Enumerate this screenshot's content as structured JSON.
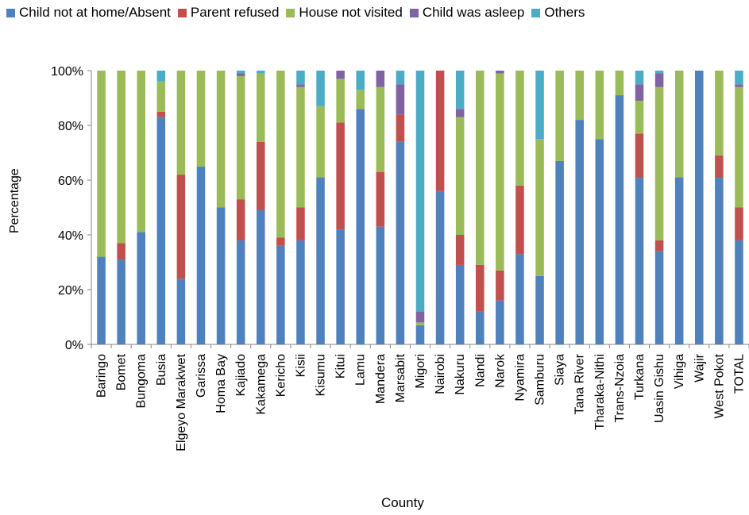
{
  "chart_data": {
    "type": "bar",
    "stacked": true,
    "xlabel": "County",
    "ylabel": "Percentage",
    "ylim": [
      0,
      100
    ],
    "yticks": [
      "0%",
      "20%",
      "40%",
      "60%",
      "80%",
      "100%"
    ],
    "legend_position": "top",
    "categories": [
      "Baringo",
      "Bomet",
      "Bungoma",
      "Busia",
      "Elgeyo Marakwet",
      "Garissa",
      "Homa Bay",
      "Kajiado",
      "Kakamega",
      "Kericho",
      "Kisii",
      "Kisumu",
      "Kitui",
      "Lamu",
      "Mandera",
      "Marsabit",
      "Migori",
      "Nairobi",
      "Nakuru",
      "Nandi",
      "Narok",
      "Nyamira",
      "Samburu",
      "Siaya",
      "Tana River",
      "Tharaka-Nithi",
      "Trans-Nzoia",
      "Turkana",
      "Uasin Gishu",
      "Vihiga",
      "Wajir",
      "West Pokot",
      "TOTAL"
    ],
    "series": [
      {
        "name": "Child not at home/Absent",
        "color": "#4F81BD",
        "values": [
          32,
          31,
          41,
          83,
          24,
          65,
          50,
          38,
          49,
          36,
          38,
          61,
          42,
          86,
          43,
          74,
          7,
          56,
          29,
          12,
          16,
          33,
          25,
          67,
          82,
          75,
          91,
          61,
          34,
          61,
          100,
          61,
          38
        ]
      },
      {
        "name": "Parent refused",
        "color": "#C0504D",
        "values": [
          0,
          6,
          0,
          2,
          38,
          0,
          0,
          15,
          25,
          3,
          12,
          0,
          39,
          0,
          20,
          10,
          0,
          44,
          11,
          17,
          11,
          25,
          0,
          0,
          0,
          0,
          0,
          16,
          4,
          0,
          0,
          8,
          12
        ]
      },
      {
        "name": "House not visited",
        "color": "#9BBB59",
        "values": [
          68,
          63,
          59,
          11,
          38,
          35,
          50,
          45,
          25,
          61,
          44,
          26,
          16,
          7,
          31,
          0,
          1,
          0,
          43,
          71,
          72,
          42,
          50,
          33,
          18,
          25,
          9,
          12,
          56,
          39,
          0,
          31,
          44
        ]
      },
      {
        "name": "Child was asleep",
        "color": "#8064A2",
        "values": [
          0,
          0,
          0,
          0,
          0,
          0,
          0,
          1,
          0,
          0,
          1,
          0,
          3,
          0,
          6,
          11,
          4,
          0,
          3,
          0,
          1,
          0,
          0,
          0,
          0,
          0,
          0,
          6,
          5,
          0,
          0,
          0,
          1
        ]
      },
      {
        "name": "Others",
        "color": "#4BACC6",
        "values": [
          0,
          0,
          0,
          4,
          0,
          0,
          0,
          1,
          1,
          0,
          5,
          13,
          0,
          7,
          0,
          5,
          88,
          0,
          14,
          0,
          0,
          0,
          25,
          0,
          0,
          0,
          0,
          5,
          1,
          0,
          0,
          0,
          5
        ]
      }
    ]
  }
}
